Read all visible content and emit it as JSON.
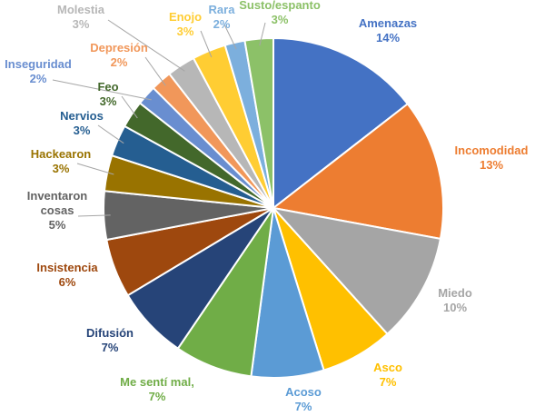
{
  "chart_data": {
    "type": "pie",
    "title": "",
    "legend": "none",
    "slices": [
      {
        "name": "Amenazas",
        "label_lines": [
          "Amenazas"
        ],
        "value_label": "14%",
        "value": 14.5,
        "color": "#4472C4"
      },
      {
        "name": "Incomodidad",
        "label_lines": [
          "Incomodidad"
        ],
        "value_label": "13%",
        "value": 13.4,
        "color": "#ED7D31"
      },
      {
        "name": "Miedo",
        "label_lines": [
          "Miedo"
        ],
        "value_label": "10%",
        "value": 10.4,
        "color": "#A5A5A5"
      },
      {
        "name": "Asco",
        "label_lines": [
          "Asco"
        ],
        "value_label": "7%",
        "value": 6.9,
        "color": "#FFC000"
      },
      {
        "name": "Acoso",
        "label_lines": [
          "Acoso"
        ],
        "value_label": "7%",
        "value": 6.9,
        "color": "#5B9BD5"
      },
      {
        "name": "Me sentí mal",
        "label_lines": [
          "Me sentí mal,"
        ],
        "value_label": "7%",
        "value": 7.4,
        "color": "#70AD47"
      },
      {
        "name": "Difusión",
        "label_lines": [
          "Difusión"
        ],
        "value_label": "7%",
        "value": 6.9,
        "color": "#264478"
      },
      {
        "name": "Insistencia",
        "label_lines": [
          "Insistencia"
        ],
        "value_label": "6%",
        "value": 5.6,
        "color": "#9E480E"
      },
      {
        "name": "Inventaron cosas",
        "label_lines": [
          "Inventaron",
          "cosas"
        ],
        "value_label": "5%",
        "value": 4.6,
        "color": "#636363"
      },
      {
        "name": "Hackearon",
        "label_lines": [
          "Hackearon"
        ],
        "value_label": "3%",
        "value": 3.4,
        "color": "#997300"
      },
      {
        "name": "Nervios",
        "label_lines": [
          "Nervios"
        ],
        "value_label": "3%",
        "value": 3.0,
        "color": "#255E91"
      },
      {
        "name": "Feo",
        "label_lines": [
          "Feo"
        ],
        "value_label": "3%",
        "value": 2.6,
        "color": "#43682B"
      },
      {
        "name": "Inseguridad",
        "label_lines": [
          "Inseguridad"
        ],
        "value_label": "2%",
        "value": 1.9,
        "color": "#698ED0"
      },
      {
        "name": "Depresión",
        "label_lines": [
          "Depresión"
        ],
        "value_label": "2%",
        "value": 2.0,
        "color": "#F1975A"
      },
      {
        "name": "Molestia",
        "label_lines": [
          "Molestia"
        ],
        "value_label": "3%",
        "value": 2.7,
        "color": "#B7B7B7"
      },
      {
        "name": "Enojo",
        "label_lines": [
          "Enojo"
        ],
        "value_label": "3%",
        "value": 3.2,
        "color": "#FFCD33"
      },
      {
        "name": "Rara",
        "label_lines": [
          "Rara"
        ],
        "value_label": "2%",
        "value": 1.9,
        "color": "#7CAFDD"
      },
      {
        "name": "Susto/espanto",
        "label_lines": [
          "Susto/espanto"
        ],
        "value_label": "3%",
        "value": 2.7,
        "color": "#8CC168"
      }
    ]
  }
}
